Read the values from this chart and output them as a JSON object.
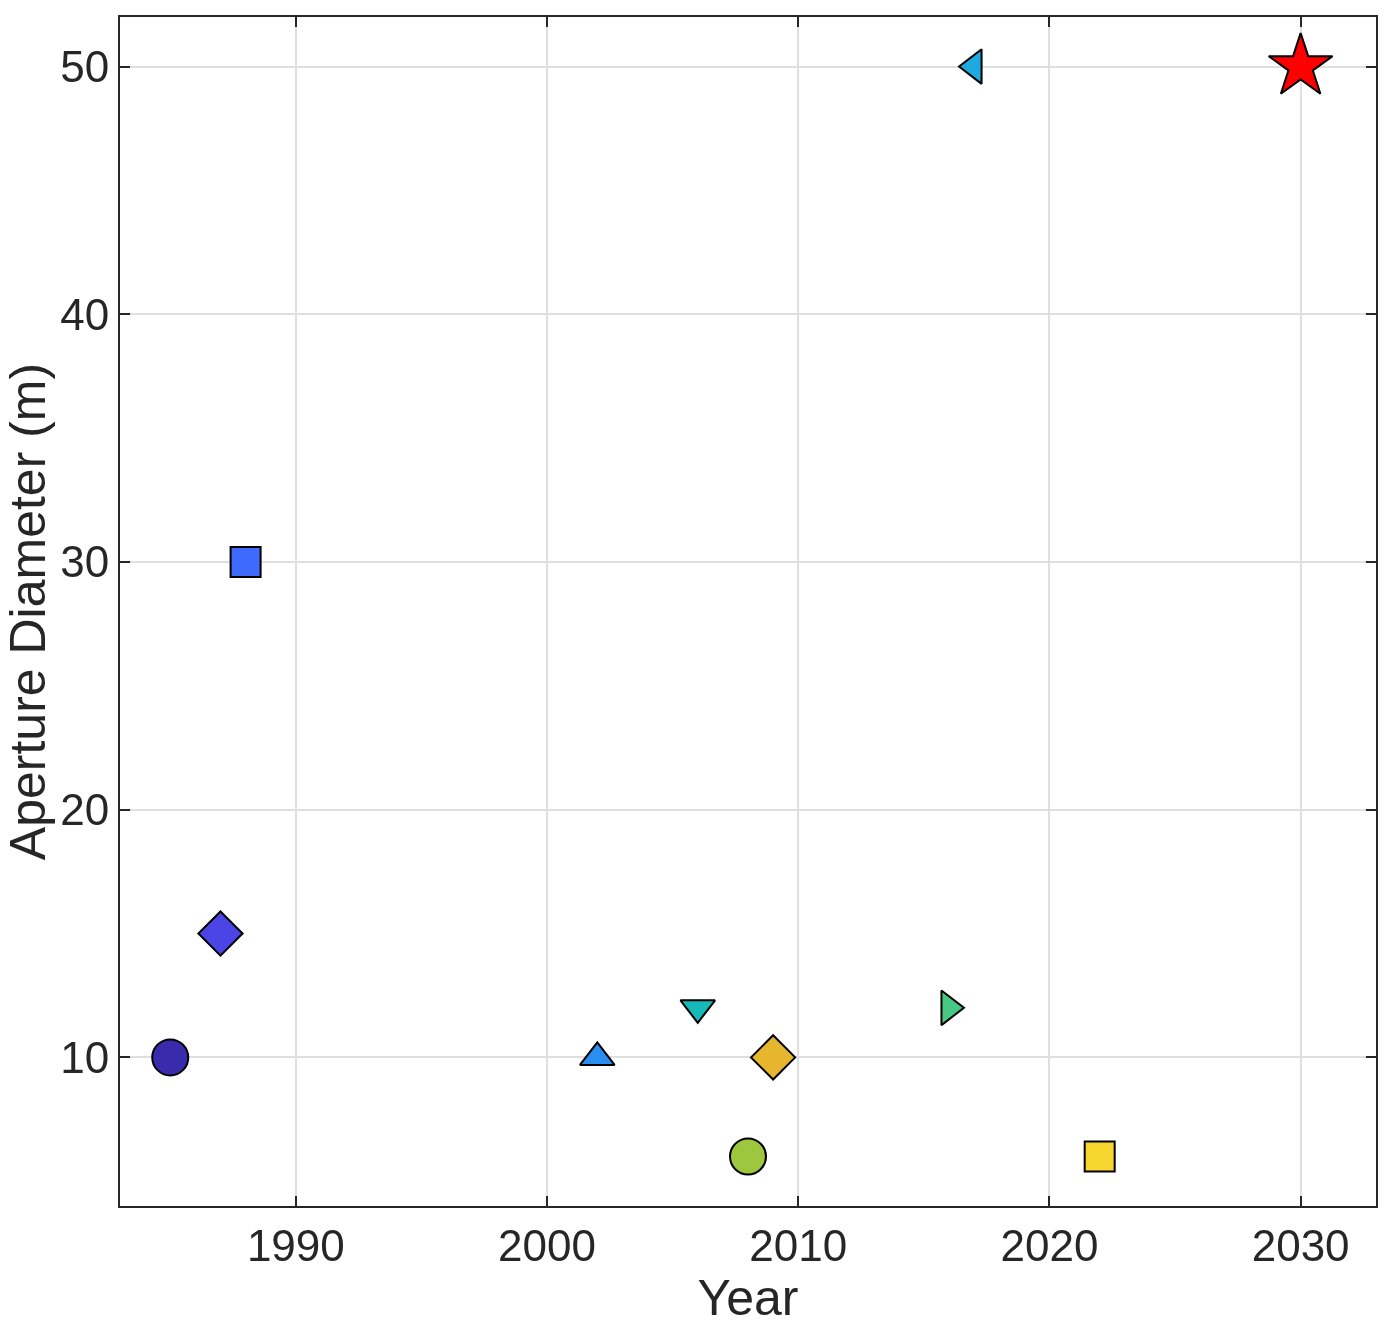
{
  "chart_data": {
    "type": "scatter",
    "xlabel": "Year",
    "ylabel": "Aperture Diameter (m)",
    "xlim": [
      1983,
      2033
    ],
    "xticks": [
      1990,
      2000,
      2010,
      2020,
      2030
    ],
    "ylim": [
      4,
      52
    ],
    "yticks": [
      10,
      20,
      30,
      40,
      50
    ],
    "grid": true,
    "series": [
      {
        "x": [
          1985
        ],
        "values": [
          10
        ],
        "color": "#3a2aac",
        "marker": "circle"
      },
      {
        "x": [
          1987
        ],
        "values": [
          15
        ],
        "color": "#4a45e4",
        "marker": "diamond"
      },
      {
        "x": [
          1988
        ],
        "values": [
          30
        ],
        "color": "#3e6bfe",
        "marker": "square"
      },
      {
        "x": [
          2002
        ],
        "values": [
          10
        ],
        "color": "#2a8ef0",
        "marker": "triangle-up"
      },
      {
        "x": [
          2006
        ],
        "values": [
          12
        ],
        "color": "#17bab8",
        "marker": "triangle-down"
      },
      {
        "x": [
          2009
        ],
        "values": [
          10
        ],
        "color": "#e6b62e",
        "marker": "diamond"
      },
      {
        "x": [
          2008
        ],
        "values": [
          6
        ],
        "color": "#9ec63e",
        "marker": "circle"
      },
      {
        "x": [
          2016
        ],
        "values": [
          12
        ],
        "color": "#46c982",
        "marker": "triangle-right"
      },
      {
        "x": [
          2017
        ],
        "values": [
          50
        ],
        "color": "#1eaadf",
        "marker": "triangle-left"
      },
      {
        "x": [
          2022
        ],
        "values": [
          6
        ],
        "color": "#f6d52e",
        "marker": "square"
      },
      {
        "x": [
          2030
        ],
        "values": [
          50
        ],
        "color": "#ff0000",
        "marker": "star"
      }
    ]
  }
}
